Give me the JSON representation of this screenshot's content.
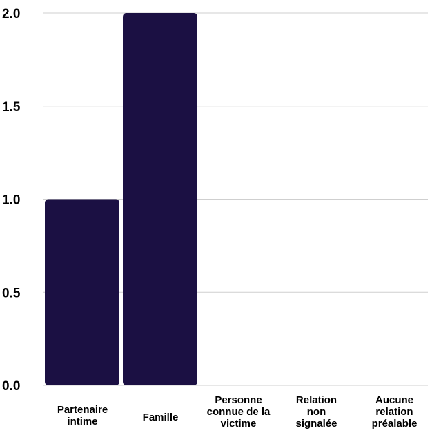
{
  "chart_data": {
    "type": "bar",
    "categories": [
      [
        "Partenaire",
        "intime"
      ],
      [
        "Famille"
      ],
      [
        "Personne",
        "connue de la",
        "victime"
      ],
      [
        "Relation",
        "non",
        "signalée"
      ],
      [
        "Aucune",
        "relation",
        "préalable"
      ]
    ],
    "values": [
      1,
      2,
      0,
      0,
      0
    ],
    "yticks": [
      "0.0",
      "0.5",
      "1.0",
      "1.5",
      "2.0"
    ],
    "ylim": [
      0,
      2
    ],
    "grid": true,
    "bar_color": "#1b1043",
    "grid_color": "#cfcfcf",
    "title": "",
    "xlabel": "",
    "ylabel": ""
  }
}
